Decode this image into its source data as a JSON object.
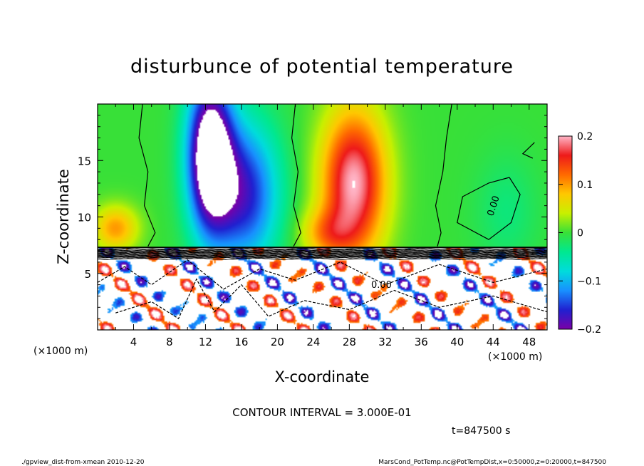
{
  "chart_data": {
    "type": "heatmap",
    "title": "disturbunce of potential temperature",
    "xlabel": "X-coordinate",
    "ylabel": "Z-coordinate",
    "x_unit": "(×1000 m)",
    "y_unit": "(×1000 m)",
    "xlim": [
      0,
      50
    ],
    "ylim": [
      0,
      20
    ],
    "x_ticks": [
      4,
      8,
      12,
      16,
      20,
      24,
      28,
      32,
      36,
      40,
      44,
      48
    ],
    "y_ticks": [
      5,
      10,
      15
    ],
    "colorbar": {
      "range": [
        -0.2,
        0.2
      ],
      "tick_values": [
        0.2,
        0.1,
        0,
        -0.1,
        -0.2
      ],
      "tick_labels": [
        "0.2",
        "0.1",
        "0",
        "−0.1",
        "−0.2"
      ]
    },
    "contour_labels": [
      "0.00",
      "0.00"
    ],
    "contour_interval_text": "CONTOUR INTERVAL = 3.000E-01",
    "time_text": "t=847500  s",
    "footer_left": "./gpview_dist-from-xmean  2010-12-20",
    "footer_right": "MarsCond_PotTemp.nc@PotTempDist,x=0:50000,z=0:20000,t=847500",
    "features": [
      {
        "x": 12.5,
        "z": 15.5,
        "sx": 2.6,
        "sz": 7.0,
        "value": -0.26
      },
      {
        "x": 16.5,
        "z": 12.0,
        "sx": 3.8,
        "sz": 6.5,
        "value": -0.16
      },
      {
        "x": 28.5,
        "z": 13.0,
        "sx": 3.6,
        "sz": 6.5,
        "value": 0.2
      },
      {
        "x": 25.5,
        "z": 8.5,
        "sx": 3.0,
        "sz": 2.2,
        "value": 0.08
      },
      {
        "x": 2.0,
        "z": 9.0,
        "sx": 2.5,
        "sz": 2.0,
        "value": 0.1
      },
      {
        "x": 45.5,
        "z": 10.5,
        "sx": 3.5,
        "sz": 5.0,
        "value": -0.03
      }
    ]
  }
}
